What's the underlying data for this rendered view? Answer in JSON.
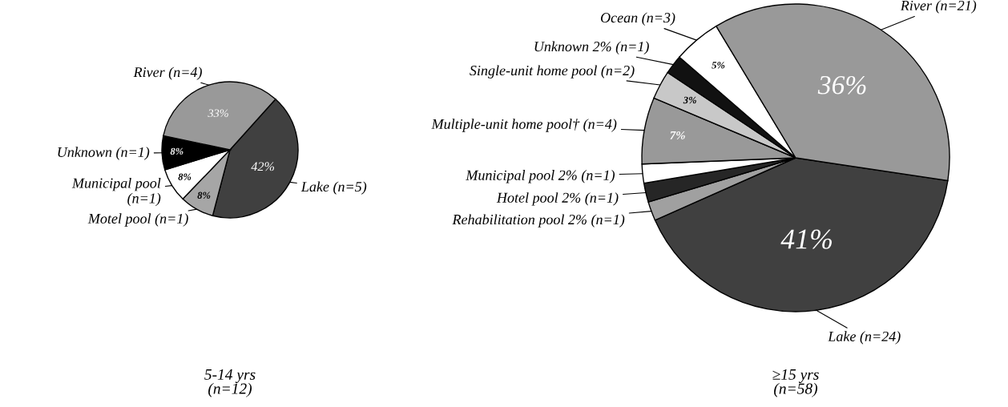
{
  "chart_data": [
    {
      "type": "pie",
      "xlabel": "5-14 yrs\n(n=12)",
      "categories": [
        "Lake (n=5)",
        "Motel pool (n=1)",
        "Municipal pool\n(n=1)",
        "Unknown (n=1)",
        "River (n=4)"
      ],
      "values": [
        42,
        8,
        8,
        8,
        33
      ],
      "colors": [
        "#404040",
        "#a6a6a6",
        "#ffffff",
        "#000000",
        "#999999"
      ],
      "value_labels": [
        "42%",
        "8%",
        "8%",
        "8%",
        "33%"
      ]
    },
    {
      "type": "pie",
      "xlabel": "≥15 yrs\n(n=58)",
      "categories": [
        "Lake (n=24)",
        "Rehabilitation pool 2% (n=1)",
        "Hotel pool 2% (n=1)",
        "Municipal pool 2% (n=1)",
        "Multiple-unit home pool† (n=4)",
        "Single-unit home pool (n=2)",
        "Unknown 2% (n=1)",
        "Ocean (n=3)",
        "River (n=21)"
      ],
      "values": [
        41,
        2,
        2,
        2,
        7,
        3,
        2,
        5,
        36
      ],
      "colors": [
        "#404040",
        "#a0a0a0",
        "#262626",
        "#ffffff",
        "#999999",
        "#c8c8c8",
        "#111111",
        "#ffffff",
        "#999999"
      ],
      "value_labels": [
        "41%",
        null,
        null,
        null,
        "7%",
        "3%",
        null,
        "5%",
        "36%"
      ]
    }
  ]
}
